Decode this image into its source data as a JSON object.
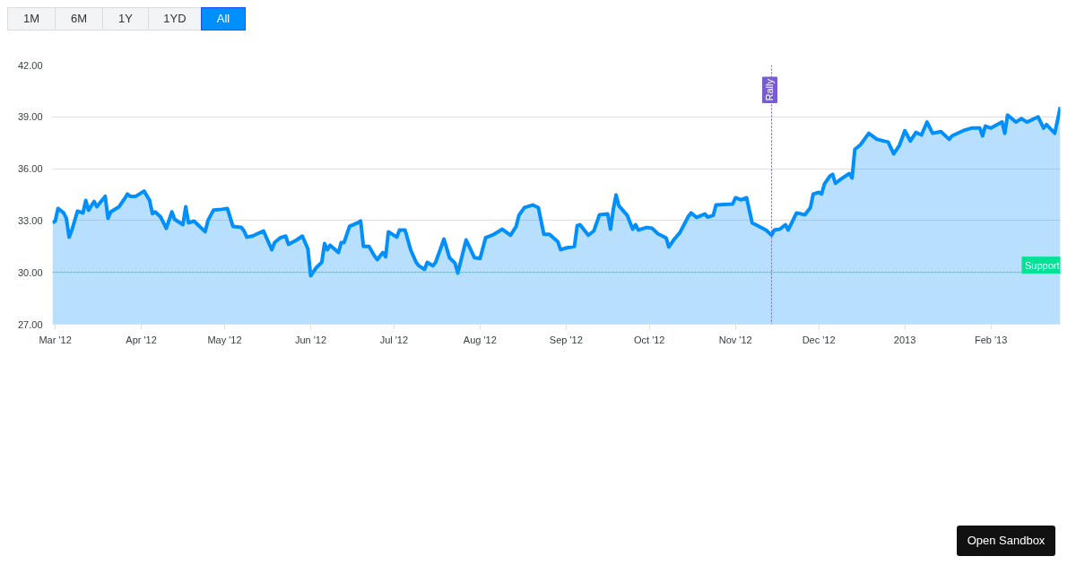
{
  "chart_data": {
    "type": "area",
    "x": [
      "2012-02-29",
      "2012-03-01",
      "2012-03-02",
      "2012-03-04",
      "2012-03-05",
      "2012-03-06",
      "2012-03-07",
      "2012-03-09",
      "2012-03-11",
      "2012-03-12",
      "2012-03-13",
      "2012-03-15",
      "2012-03-16",
      "2012-03-18",
      "2012-03-19",
      "2012-03-20",
      "2012-03-21",
      "2012-03-24",
      "2012-03-26",
      "2012-03-27",
      "2012-03-28",
      "2012-03-30",
      "2012-04-02",
      "2012-04-04",
      "2012-04-05",
      "2012-04-06",
      "2012-04-08",
      "2012-04-10",
      "2012-04-12",
      "2012-04-13",
      "2012-04-16",
      "2012-04-17",
      "2012-04-18",
      "2012-04-20",
      "2012-04-24",
      "2012-04-25",
      "2012-04-27",
      "2012-04-30",
      "2012-05-02",
      "2012-05-04",
      "2012-05-07",
      "2012-05-08",
      "2012-05-09",
      "2012-05-11",
      "2012-05-15",
      "2012-05-18",
      "2012-05-19",
      "2012-05-21",
      "2012-05-23",
      "2012-05-24",
      "2012-05-27",
      "2012-05-29",
      "2012-05-31",
      "2012-06-01",
      "2012-06-03",
      "2012-06-05",
      "2012-06-06",
      "2012-06-07",
      "2012-06-08",
      "2012-06-11",
      "2012-06-12",
      "2012-06-13",
      "2012-06-15",
      "2012-06-18",
      "2012-06-19",
      "2012-06-20",
      "2012-06-22",
      "2012-06-24",
      "2012-06-25",
      "2012-06-27",
      "2012-06-28",
      "2012-06-29",
      "2012-07-02",
      "2012-07-03",
      "2012-07-05",
      "2012-07-07",
      "2012-07-09",
      "2012-07-10",
      "2012-07-12",
      "2012-07-13",
      "2012-07-15",
      "2012-07-16",
      "2012-07-18",
      "2012-07-19",
      "2012-07-21",
      "2012-07-23",
      "2012-07-24",
      "2012-07-26",
      "2012-07-27",
      "2012-07-30",
      "2012-08-01",
      "2012-08-03",
      "2012-08-06",
      "2012-08-09",
      "2012-08-12",
      "2012-08-14",
      "2012-08-15",
      "2012-08-17",
      "2012-08-20",
      "2012-08-22",
      "2012-08-24",
      "2012-08-26",
      "2012-08-29",
      "2012-08-30",
      "2012-09-01",
      "2012-09-04",
      "2012-09-05",
      "2012-09-06",
      "2012-09-09",
      "2012-09-11",
      "2012-09-13",
      "2012-09-16",
      "2012-09-17",
      "2012-09-18",
      "2012-09-19",
      "2012-09-20",
      "2012-09-23",
      "2012-09-25",
      "2012-09-26",
      "2012-09-27",
      "2012-09-30",
      "2012-10-02",
      "2012-10-04",
      "2012-10-07",
      "2012-10-08",
      "2012-10-10",
      "2012-10-12",
      "2012-10-15",
      "2012-10-16",
      "2012-10-18",
      "2012-10-21",
      "2012-10-22",
      "2012-10-24",
      "2012-10-25",
      "2012-10-31",
      "2012-11-01",
      "2012-11-03",
      "2012-11-05",
      "2012-11-07",
      "2012-11-12",
      "2012-11-14",
      "2012-11-15",
      "2012-11-17",
      "2012-11-19",
      "2012-11-20",
      "2012-11-23",
      "2012-11-26",
      "2012-11-28",
      "2012-11-29",
      "2012-12-01",
      "2012-12-02",
      "2012-12-03",
      "2012-12-05",
      "2012-12-06",
      "2012-12-07",
      "2012-12-09",
      "2012-12-12",
      "2012-12-13",
      "2012-12-14",
      "2012-12-16",
      "2012-12-19",
      "2012-12-22",
      "2012-12-26",
      "2012-12-28",
      "2012-12-30",
      "2013-01-01",
      "2013-01-03",
      "2013-01-05",
      "2013-01-07",
      "2013-01-09",
      "2013-01-11",
      "2013-01-14",
      "2013-01-17",
      "2013-01-18",
      "2013-01-22",
      "2013-01-25",
      "2013-01-28",
      "2013-01-29",
      "2013-01-30",
      "2013-02-01",
      "2013-02-05",
      "2013-02-06",
      "2013-02-07",
      "2013-02-10",
      "2013-02-12",
      "2013-02-14",
      "2013-02-18",
      "2013-02-20",
      "2013-02-21",
      "2013-02-24",
      "2013-02-26"
    ],
    "series": [
      {
        "color": "#008ffb",
        "values": [
          32.87,
          32.97,
          33.7,
          33.44,
          33.13,
          32.04,
          32.45,
          33.54,
          33.44,
          34.16,
          33.6,
          34.1,
          33.8,
          34.2,
          34.4,
          33.13,
          33.5,
          33.8,
          34.27,
          34.53,
          34.4,
          34.4,
          34.7,
          34.16,
          33.4,
          33.5,
          33.2,
          32.55,
          33.5,
          33.07,
          32.76,
          33.8,
          32.87,
          32.97,
          32.35,
          33.0,
          33.6,
          33.65,
          33.7,
          32.66,
          32.6,
          32.4,
          32.04,
          32.1,
          32.4,
          31.31,
          31.72,
          32.0,
          32.1,
          31.62,
          31.88,
          32.1,
          31.36,
          29.8,
          30.27,
          30.58,
          31.67,
          31.31,
          31.57,
          31.15,
          31.72,
          31.72,
          32.66,
          32.87,
          32.97,
          31.5,
          31.5,
          30.95,
          30.74,
          31.15,
          30.9,
          32.35,
          32.04,
          32.45,
          32.45,
          31.31,
          30.58,
          30.38,
          30.17,
          30.58,
          30.38,
          30.58,
          31.47,
          31.93,
          30.85,
          30.53,
          29.96,
          31.26,
          31.88,
          30.85,
          30.8,
          32.0,
          32.2,
          32.5,
          32.15,
          32.66,
          33.3,
          33.75,
          33.9,
          33.75,
          32.2,
          32.2,
          31.78,
          31.31,
          31.41,
          31.5,
          32.7,
          32.76,
          32.15,
          32.4,
          33.33,
          33.38,
          32.5,
          33.65,
          34.48,
          33.86,
          33.3,
          32.5,
          32.76,
          32.45,
          32.6,
          32.55,
          32.24,
          32.0,
          31.47,
          31.93,
          32.3,
          33.23,
          33.44,
          33.18,
          33.38,
          33.2,
          33.3,
          33.9,
          33.96,
          34.32,
          34.2,
          34.32,
          32.87,
          32.45,
          32.15,
          32.45,
          32.5,
          32.76,
          32.45,
          33.44,
          33.33,
          33.75,
          34.53,
          34.63,
          34.53,
          35.1,
          35.57,
          35.67,
          35.15,
          35.4,
          35.72,
          35.46,
          37.12,
          37.38,
          38.05,
          37.7,
          37.54,
          36.86,
          37.33,
          38.2,
          37.6,
          38.1,
          37.95,
          38.7,
          38.05,
          38.15,
          37.7,
          37.9,
          38.2,
          38.35,
          38.35,
          37.9,
          38.47,
          38.35,
          38.7,
          38.05,
          39.1,
          38.7,
          38.9,
          38.7,
          39.0,
          38.35,
          38.55,
          38.05,
          39.56
        ]
      }
    ],
    "xlim": [
      "2012-02-29",
      "2013-02-26"
    ],
    "xticks": [
      {
        "value": "2012-03-01",
        "label": "Mar '12"
      },
      {
        "value": "2012-04-01",
        "label": "Apr '12"
      },
      {
        "value": "2012-05-01",
        "label": "May '12"
      },
      {
        "value": "2012-06-01",
        "label": "Jun '12"
      },
      {
        "value": "2012-07-01",
        "label": "Jul '12"
      },
      {
        "value": "2012-08-01",
        "label": "Aug '12"
      },
      {
        "value": "2012-09-01",
        "label": "Sep '12"
      },
      {
        "value": "2012-10-01",
        "label": "Oct '12"
      },
      {
        "value": "2012-11-01",
        "label": "Nov '12"
      },
      {
        "value": "2012-12-01",
        "label": "Dec '12"
      },
      {
        "value": "2013-01-01",
        "label": "2013"
      },
      {
        "value": "2013-02-01",
        "label": "Feb '13"
      }
    ],
    "ylim": [
      27,
      42
    ],
    "yticks": [
      {
        "value": 27,
        "label": "27.00"
      },
      {
        "value": 30,
        "label": "30.00"
      },
      {
        "value": 33,
        "label": "33.00"
      },
      {
        "value": 36,
        "label": "36.00"
      },
      {
        "value": 39,
        "label": "39.00"
      },
      {
        "value": 42,
        "label": "42.00"
      }
    ],
    "ref_lines": [
      {
        "axis": "x",
        "value": "2012-11-14",
        "label": "Rally",
        "color": "#775dd0",
        "line_style": "dotted"
      },
      {
        "axis": "y",
        "value": 30,
        "label": "Support",
        "color": "#00e396",
        "line_style": "dotted"
      }
    ],
    "annotations": [
      "1M",
      "6M",
      "1Y",
      "1YD",
      "All",
      "Open Sandbox"
    ],
    "grid": "y",
    "marker": "none",
    "line_style": "solid"
  }
}
